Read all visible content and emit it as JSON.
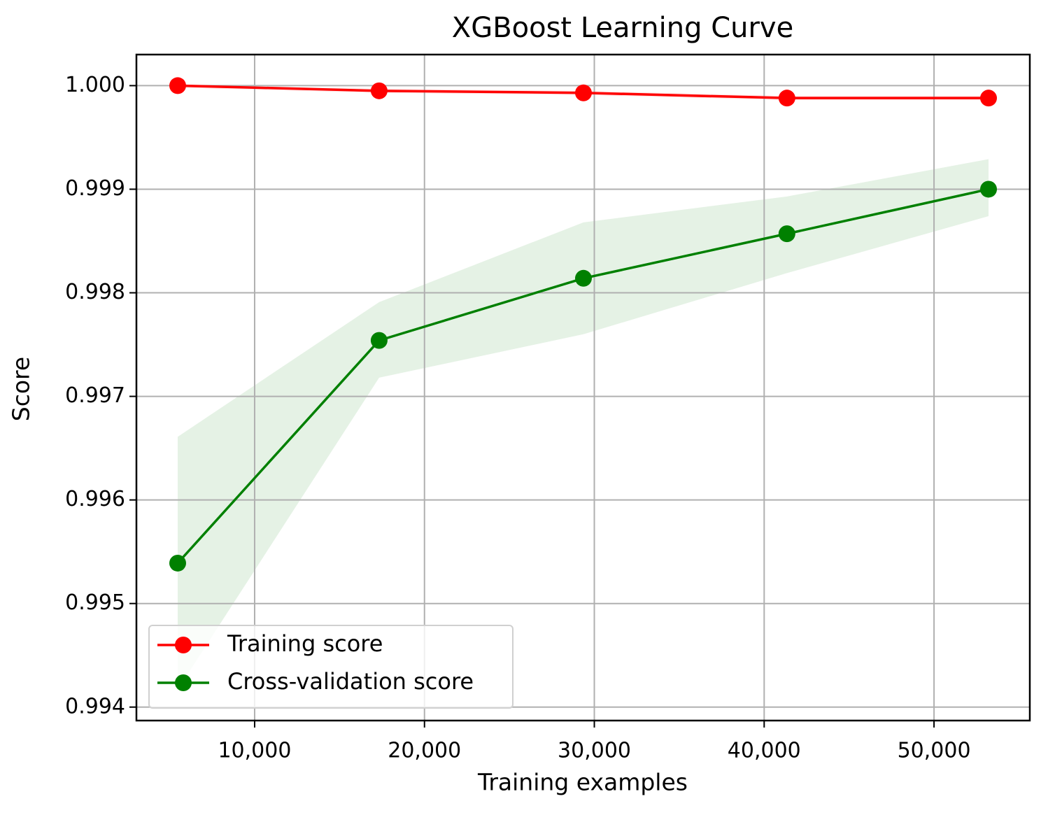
{
  "chart_data": {
    "type": "line",
    "title": "XGBoost Learning Curve",
    "xlabel": "Training examples",
    "ylabel": "Score",
    "x": [
      5470,
      17330,
      29360,
      41340,
      53210
    ],
    "series": [
      {
        "name": "Training score",
        "color": "#ff0000",
        "values": [
          1.0,
          0.99995,
          0.99993,
          0.99988,
          0.99988
        ],
        "band_lower": [
          0.99998,
          0.99993,
          0.99991,
          0.99986,
          0.99986
        ],
        "band_upper": [
          1.0,
          0.99997,
          0.99995,
          0.9999,
          0.9999
        ]
      },
      {
        "name": "Cross-validation score",
        "color": "#008000",
        "values": [
          0.99539,
          0.99754,
          0.99814,
          0.99857,
          0.999
        ],
        "band_lower": [
          0.99417,
          0.99718,
          0.9976,
          0.99819,
          0.99874
        ],
        "band_upper": [
          0.99661,
          0.99791,
          0.99868,
          0.99893,
          0.99929
        ]
      }
    ],
    "xlim": [
      3040,
      55640
    ],
    "ylim": [
      0.99387,
      1.0003
    ],
    "xticks": [
      {
        "value": 10000,
        "label": "10,000"
      },
      {
        "value": 20000,
        "label": "20,000"
      },
      {
        "value": 30000,
        "label": "30,000"
      },
      {
        "value": 40000,
        "label": "40,000"
      },
      {
        "value": 50000,
        "label": "50,000"
      }
    ],
    "yticks": [
      {
        "value": 0.994,
        "label": "0.994"
      },
      0.995,
      0.996,
      0.997,
      0.998,
      0.999,
      {
        "value": 1.0,
        "label": "1.000"
      }
    ],
    "grid": true,
    "legend": "lower left"
  }
}
